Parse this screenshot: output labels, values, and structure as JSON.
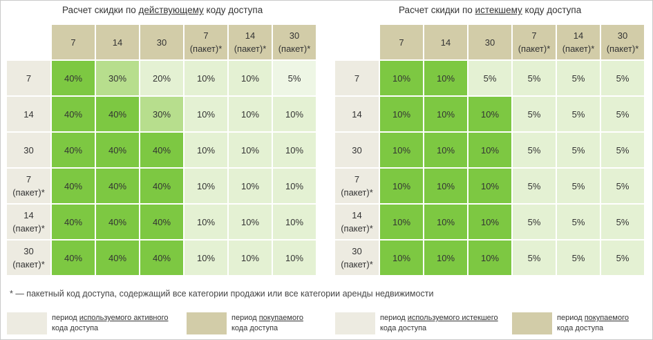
{
  "left_title": {
    "prefix": "Расчет скидки по ",
    "emphasis": "действующему",
    "suffix": " коду доступа"
  },
  "right_title": {
    "prefix": "Расчет скидки по ",
    "emphasis": "истекшему",
    "suffix": " коду доступа"
  },
  "column_headers": [
    [
      "7"
    ],
    [
      "14"
    ],
    [
      "30"
    ],
    [
      "7",
      "(пакет)*"
    ],
    [
      "14",
      "(пакет)*"
    ],
    [
      "30",
      "(пакет)*"
    ]
  ],
  "row_headers": [
    [
      "7"
    ],
    [
      "14"
    ],
    [
      "30"
    ],
    [
      "7",
      "(пакет)*"
    ],
    [
      "14",
      "(пакет)*"
    ],
    [
      "30",
      "(пакет)*"
    ]
  ],
  "left_values": [
    [
      "40%",
      "30%",
      "20%",
      "10%",
      "10%",
      "5%"
    ],
    [
      "40%",
      "40%",
      "30%",
      "10%",
      "10%",
      "10%"
    ],
    [
      "40%",
      "40%",
      "40%",
      "10%",
      "10%",
      "10%"
    ],
    [
      "40%",
      "40%",
      "40%",
      "10%",
      "10%",
      "10%"
    ],
    [
      "40%",
      "40%",
      "40%",
      "10%",
      "10%",
      "10%"
    ],
    [
      "40%",
      "40%",
      "40%",
      "10%",
      "10%",
      "10%"
    ]
  ],
  "right_values": [
    [
      "10%",
      "10%",
      "5%",
      "5%",
      "5%",
      "5%"
    ],
    [
      "10%",
      "10%",
      "10%",
      "5%",
      "5%",
      "5%"
    ],
    [
      "10%",
      "10%",
      "10%",
      "5%",
      "5%",
      "5%"
    ],
    [
      "10%",
      "10%",
      "10%",
      "5%",
      "5%",
      "5%"
    ],
    [
      "10%",
      "10%",
      "10%",
      "5%",
      "5%",
      "5%"
    ],
    [
      "10%",
      "10%",
      "10%",
      "5%",
      "5%",
      "5%"
    ]
  ],
  "footnote": "* — пакетный код доступа, содержащий все категории продажи или все категории аренды недвижимости",
  "legend": {
    "left_used": {
      "prefix": "период ",
      "emphasis": "используемого активного",
      "line2": "кода доступа"
    },
    "left_bought": {
      "prefix": "период ",
      "emphasis": "покупаемого",
      "line2": "кода доступа"
    },
    "right_used": {
      "prefix": "период ",
      "emphasis": "используемого истекшего",
      "line2": "кода доступа"
    },
    "right_bought": {
      "prefix": "период ",
      "emphasis": "покупаемого",
      "line2": "кода доступа"
    }
  },
  "colors": {
    "header_tan": "#d2cca8",
    "row_header_beige": "#edebe1",
    "green_dark": "#7dc842",
    "green_mid": "#b7de8d",
    "green_light": "#e4f1d3",
    "green_very_light": "#eef6e5"
  }
}
